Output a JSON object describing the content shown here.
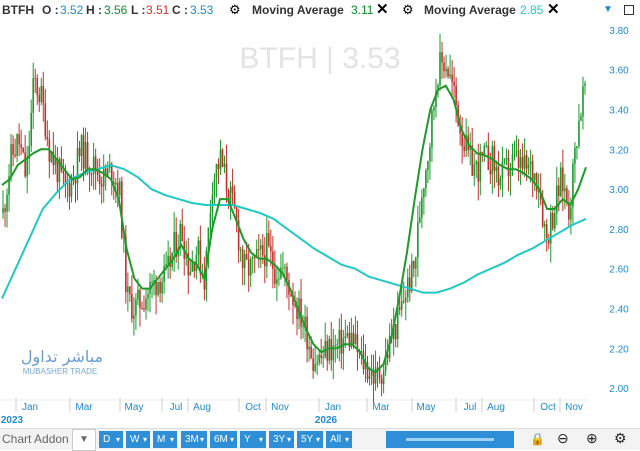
{
  "header": {
    "symbol": "BTFH",
    "o_label": "O :",
    "o_value": "3.52",
    "h_label": "H :",
    "h_value": "3.56",
    "l_label": "L :",
    "l_value": "3.51",
    "c_label": "C :",
    "c_value": "3.53",
    "ma1_label": "Moving Average",
    "ma1_value": "3.11",
    "ma2_label": "Moving Average",
    "ma2_value": "2.85"
  },
  "watermark": {
    "text": "BTFH | 3.53",
    "brand_arabic": "مباشر تداول",
    "brand_latin": "MUBASHER TRADE"
  },
  "chart_data": {
    "type": "candlestick",
    "y_ticks": [
      "3.80",
      "3.60",
      "3.40",
      "3.20",
      "3.00",
      "2.80",
      "2.60",
      "2.40",
      "2.20",
      "2.00"
    ],
    "ylim": [
      1.95,
      3.85
    ],
    "x_ticks": [
      "Jan",
      "Mar",
      "May",
      "Jul",
      "Aug",
      "Oct",
      "Nov",
      "Jan",
      "Mar",
      "May",
      "Jul",
      "Aug",
      "Oct",
      "Nov"
    ],
    "year_labels": [
      "2023",
      "2026"
    ],
    "close_series": [
      2.88,
      3.15,
      3.25,
      3.05,
      3.55,
      3.45,
      3.2,
      3.1,
      3.0,
      3.05,
      3.2,
      3.15,
      3.1,
      3.05,
      3.1,
      3.0,
      2.45,
      2.4,
      2.45,
      2.5,
      2.55,
      2.55,
      2.7,
      2.8,
      2.6,
      2.7,
      2.55,
      3.05,
      3.15,
      3.0,
      2.85,
      2.6,
      2.6,
      2.65,
      2.7,
      2.6,
      2.6,
      2.5,
      2.4,
      2.3,
      2.15,
      2.15,
      2.2,
      2.2,
      2.25,
      2.25,
      2.15,
      2.1,
      2.05,
      2.1,
      2.25,
      2.35,
      2.5,
      2.6,
      3.0,
      3.25,
      3.6,
      3.65,
      3.5,
      3.3,
      3.15,
      3.1,
      3.15,
      3.15,
      3.05,
      3.1,
      3.15,
      3.1,
      3.1,
      3.05,
      2.75,
      2.9,
      3.05,
      2.9,
      3.3,
      3.53
    ],
    "ma_fast": [
      3.02,
      3.05,
      3.12,
      3.15,
      3.18,
      3.2,
      3.2,
      3.15,
      3.1,
      3.05,
      3.06,
      3.1,
      3.1,
      3.08,
      3.05,
      2.95,
      2.7,
      2.55,
      2.5,
      2.5,
      2.55,
      2.6,
      2.65,
      2.72,
      2.65,
      2.62,
      2.55,
      2.8,
      2.95,
      2.95,
      2.85,
      2.75,
      2.68,
      2.65,
      2.65,
      2.62,
      2.58,
      2.5,
      2.4,
      2.3,
      2.22,
      2.18,
      2.2,
      2.2,
      2.22,
      2.22,
      2.18,
      2.1,
      2.08,
      2.12,
      2.25,
      2.45,
      2.68,
      2.95,
      3.2,
      3.4,
      3.5,
      3.52,
      3.45,
      3.3,
      3.22,
      3.18,
      3.17,
      3.15,
      3.12,
      3.1,
      3.1,
      3.08,
      3.05,
      3.0,
      2.9,
      2.9,
      2.95,
      2.92,
      3.0,
      3.11
    ],
    "ma_slow": [
      2.45,
      2.6,
      2.75,
      2.9,
      2.98,
      3.05,
      3.08,
      3.1,
      3.12,
      3.1,
      3.06,
      3.0,
      2.97,
      2.95,
      2.93,
      2.92,
      2.92,
      2.92,
      2.9,
      2.88,
      2.85,
      2.8,
      2.75,
      2.7,
      2.66,
      2.62,
      2.6,
      2.56,
      2.54,
      2.52,
      2.5,
      2.48,
      2.48,
      2.5,
      2.53,
      2.57,
      2.6,
      2.63,
      2.67,
      2.7,
      2.74,
      2.78,
      2.82,
      2.85
    ],
    "last": {
      "open": 3.52,
      "high": 3.56,
      "low": 3.51,
      "close": 3.53
    }
  },
  "toolbar": {
    "addon_label": "Chart Addon",
    "periods": [
      "D",
      "W",
      "M",
      "3M",
      "6M",
      "Y",
      "3Y",
      "5Y",
      "All"
    ]
  },
  "colors": {
    "candle_up": "#1a9a2b",
    "candle_down": "#c0302b",
    "ma_fast": "#1e9a28",
    "ma_slow": "#22c8c4",
    "axis_text": "#1f8ad0",
    "button_blue": "#2e8fd6"
  }
}
